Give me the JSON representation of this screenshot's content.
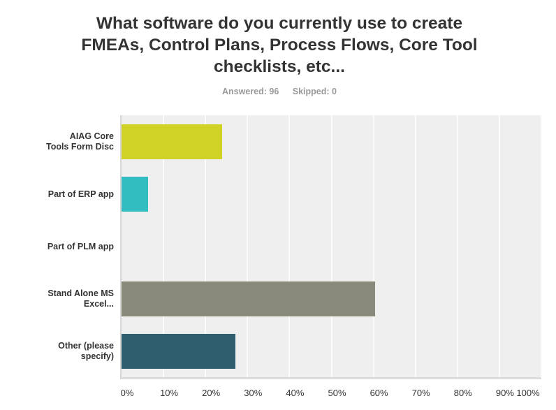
{
  "header": {
    "title": "What software do you currently use to create FMEAs, Control Plans, Process Flows, Core Tool checklists, etc...",
    "answered": "Answered: 96",
    "skipped": "Skipped: 0"
  },
  "chart_data": {
    "type": "bar",
    "orientation": "horizontal",
    "title": "What software do you currently use to create FMEAs, Control Plans, Process Flows, Core Tool checklists, etc...",
    "subtitle": "Answered: 96    Skipped: 0",
    "categories": [
      "AIAG Core Tools Form Disc",
      "Part of ERP app",
      "Part of PLM app",
      "Stand Alone MS Excel...",
      "Other (please specify)"
    ],
    "category_labels": [
      [
        "AIAG Core",
        "Tools Form Disc"
      ],
      [
        "Part of ERP app"
      ],
      [
        "Part of PLM app"
      ],
      [
        "Stand Alone MS",
        "Excel..."
      ],
      [
        "Other (please",
        "specify)"
      ]
    ],
    "values": [
      23.96,
      6.25,
      0,
      60.42,
      27.08
    ],
    "colors": [
      "#d0d326",
      "#32bec0",
      "#999999",
      "#898a7a",
      "#2f5f6e"
    ],
    "xlabel": "",
    "ylabel": "",
    "xlim": [
      0,
      100
    ],
    "xticks": [
      "0%",
      "10%",
      "20%",
      "30%",
      "40%",
      "50%",
      "60%",
      "70%",
      "80%",
      "90%",
      "100%"
    ],
    "grid": true,
    "legend": null
  }
}
